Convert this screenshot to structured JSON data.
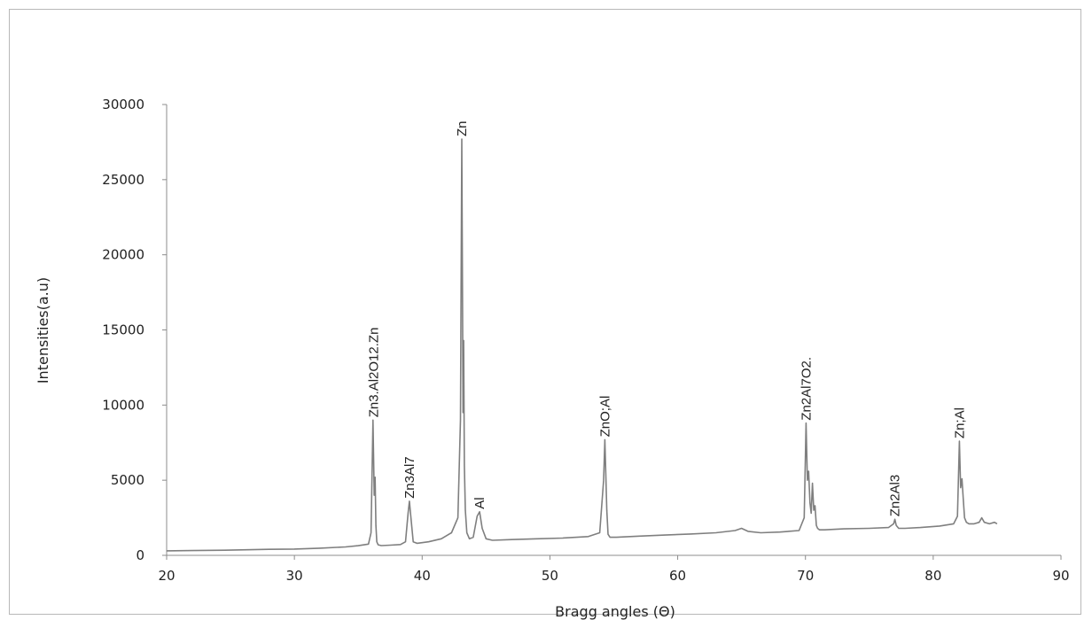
{
  "chart_data": {
    "type": "line",
    "title": "",
    "xlabel": "Bragg angles (Θ)",
    "ylabel": "Intensities(a.u)",
    "xlim": [
      20,
      90
    ],
    "ylim": [
      0,
      30000
    ],
    "x_ticks": [
      20,
      30,
      40,
      50,
      60,
      70,
      80,
      90
    ],
    "y_ticks": [
      0,
      5000,
      10000,
      15000,
      20000,
      25000,
      30000
    ],
    "grid": false,
    "legend": "none",
    "line_color": "#7f7f7f",
    "series": [
      {
        "x": [
          20,
          22,
          25,
          28,
          30,
          32,
          34,
          35,
          35.8,
          36.0,
          36.15,
          36.25,
          36.32,
          36.38,
          36.45,
          36.55,
          36.8,
          37.5,
          38.3,
          38.7,
          38.9,
          39.0,
          39.1,
          39.3,
          39.6,
          40.5,
          41.5,
          42.3,
          42.8,
          43.0,
          43.1,
          43.2,
          43.25,
          43.3,
          43.38,
          43.5,
          43.7,
          44.0,
          44.3,
          44.5,
          44.7,
          45.0,
          45.5,
          47,
          49,
          51,
          53,
          53.9,
          54.2,
          54.3,
          54.4,
          54.45,
          54.55,
          54.7,
          55.2,
          57,
          59,
          61,
          63,
          64.5,
          65.0,
          65.5,
          66.5,
          68,
          69.5,
          69.9,
          70.05,
          70.15,
          70.25,
          70.35,
          70.45,
          70.55,
          70.65,
          70.75,
          70.85,
          70.95,
          71.1,
          71.5,
          73,
          75,
          76.5,
          76.9,
          77.0,
          77.1,
          77.3,
          77.8,
          79,
          80.5,
          81.6,
          81.9,
          82.05,
          82.15,
          82.25,
          82.35,
          82.45,
          82.6,
          82.8,
          83.2,
          83.6,
          83.8,
          84.0,
          84.4,
          84.8,
          85
        ],
        "y": [
          300,
          320,
          350,
          400,
          420,
          480,
          560,
          640,
          750,
          1500,
          9000,
          4000,
          5200,
          2000,
          900,
          700,
          650,
          680,
          720,
          900,
          2800,
          3600,
          2700,
          900,
          800,
          900,
          1100,
          1500,
          2500,
          9000,
          27700,
          9500,
          14300,
          6000,
          3000,
          1500,
          1100,
          1200,
          2600,
          2900,
          1800,
          1100,
          1000,
          1050,
          1100,
          1150,
          1250,
          1500,
          5000,
          7700,
          4500,
          3000,
          1400,
          1200,
          1200,
          1280,
          1350,
          1420,
          1500,
          1650,
          1800,
          1600,
          1500,
          1550,
          1650,
          2500,
          8800,
          5000,
          5600,
          3500,
          2800,
          4800,
          3000,
          3300,
          2000,
          1800,
          1700,
          1700,
          1760,
          1800,
          1850,
          2100,
          2400,
          2000,
          1800,
          1800,
          1850,
          1950,
          2100,
          2600,
          7600,
          4500,
          5100,
          3800,
          2500,
          2200,
          2100,
          2100,
          2200,
          2500,
          2200,
          2100,
          2200,
          2100
        ]
      }
    ],
    "annotations": [
      {
        "text": "Zn3.Al2O12.Zn",
        "x": 36.2,
        "y": 9000
      },
      {
        "text": "Zn3Al7",
        "x": 39.0,
        "y": 3600
      },
      {
        "text": "Zn",
        "x": 43.1,
        "y": 27700
      },
      {
        "text": "Al",
        "x": 44.5,
        "y": 2900
      },
      {
        "text": "ZnO;Al",
        "x": 54.3,
        "y": 7700
      },
      {
        "text": "Zn2Al7O2.",
        "x": 70.05,
        "y": 8800
      },
      {
        "text": "Zn2Al3",
        "x": 77.0,
        "y": 2400
      },
      {
        "text": "Zn;Al",
        "x": 82.05,
        "y": 7600
      }
    ]
  }
}
